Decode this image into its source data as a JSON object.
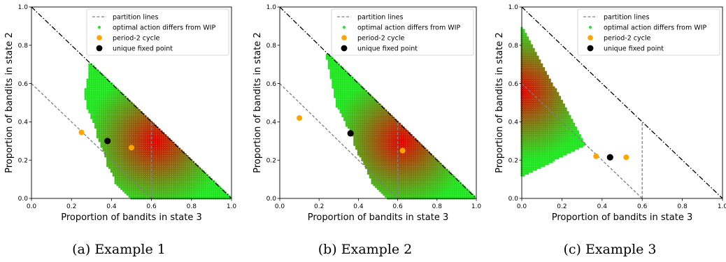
{
  "chart_data": [
    {
      "type": "scatter",
      "caption": "(a) Example 1",
      "xlabel": "Proportion of bandits in state 3",
      "ylabel": "Proportion of bandits in state 2",
      "xlim": [
        0,
        1
      ],
      "ylim": [
        0,
        1
      ],
      "xticks": [
        "0.0",
        "0.2",
        "0.4",
        "0.6",
        "0.8",
        "1.0"
      ],
      "yticks": [
        "0.0",
        "0.2",
        "0.4",
        "0.6",
        "0.8",
        "1.0"
      ],
      "legend_position": "upper right",
      "legend": [
        "partition lines",
        "optimal action differs from WIP",
        "period-2 cycle",
        "unique fixed point"
      ],
      "simplex_line": [
        [
          0,
          1
        ],
        [
          1,
          0
        ]
      ],
      "partition_lines": [
        [
          [
            0,
            0.6
          ],
          [
            0.6,
            0
          ]
        ],
        [
          [
            0.6,
            0
          ],
          [
            0.6,
            0.4
          ]
        ]
      ],
      "region_polygon": [
        [
          0.29,
          0.71
        ],
        [
          1.0,
          0.0
        ],
        [
          0.5,
          0.0
        ],
        [
          0.47,
          0.03
        ],
        [
          0.42,
          0.08
        ],
        [
          0.41,
          0.12
        ],
        [
          0.38,
          0.17
        ],
        [
          0.37,
          0.22
        ],
        [
          0.35,
          0.27
        ],
        [
          0.33,
          0.32
        ],
        [
          0.32,
          0.37
        ],
        [
          0.3,
          0.42
        ],
        [
          0.28,
          0.47
        ],
        [
          0.27,
          0.52
        ],
        [
          0.27,
          0.57
        ],
        [
          0.28,
          0.62
        ],
        [
          0.29,
          0.67
        ]
      ],
      "gradient_peak": [
        0.62,
        0.3
      ],
      "period2_cycle": [
        [
          0.25,
          0.345
        ],
        [
          0.5,
          0.265
        ]
      ],
      "fixed_point": [
        [
          0.38,
          0.3
        ]
      ]
    },
    {
      "type": "scatter",
      "caption": "(b) Example 2",
      "xlabel": "Proportion of bandits in state 3",
      "ylabel": "Proportion of bandits in state 2",
      "xlim": [
        0,
        1
      ],
      "ylim": [
        0,
        1
      ],
      "xticks": [
        "0.0",
        "0.2",
        "0.4",
        "0.6",
        "0.8",
        "1.0"
      ],
      "yticks": [
        "0.0",
        "0.2",
        "0.4",
        "0.6",
        "0.8",
        "1.0"
      ],
      "legend_position": "upper right",
      "legend": [
        "partition lines",
        "optimal action differs from WIP",
        "period-2 cycle",
        "unique fixed point"
      ],
      "simplex_line": [
        [
          0,
          1
        ],
        [
          1,
          0
        ]
      ],
      "partition_lines": [
        [
          [
            0,
            0.6
          ],
          [
            0.6,
            0
          ]
        ],
        [
          [
            0.6,
            0
          ],
          [
            0.6,
            0.4
          ]
        ]
      ],
      "region_polygon": [
        [
          0.24,
          0.76
        ],
        [
          1.0,
          0.0
        ],
        [
          0.55,
          0.0
        ],
        [
          0.52,
          0.03
        ],
        [
          0.47,
          0.08
        ],
        [
          0.45,
          0.13
        ],
        [
          0.43,
          0.18
        ],
        [
          0.4,
          0.23
        ],
        [
          0.38,
          0.28
        ],
        [
          0.37,
          0.33
        ],
        [
          0.34,
          0.38
        ],
        [
          0.32,
          0.43
        ],
        [
          0.29,
          0.48
        ],
        [
          0.28,
          0.53
        ],
        [
          0.27,
          0.58
        ],
        [
          0.26,
          0.63
        ],
        [
          0.25,
          0.68
        ],
        [
          0.24,
          0.73
        ]
      ],
      "gradient_peak": [
        0.62,
        0.3
      ],
      "period2_cycle": [
        [
          0.1,
          0.42
        ],
        [
          0.625,
          0.25
        ]
      ],
      "fixed_point": [
        [
          0.36,
          0.34
        ]
      ]
    },
    {
      "type": "scatter",
      "caption": "(c) Example 3",
      "xlabel": "Proportion of bandits in state 3",
      "ylabel": "Proportion of bandits in state 2",
      "xlim": [
        0,
        1
      ],
      "ylim": [
        0,
        1
      ],
      "xticks": [
        "0.0",
        "0.2",
        "0.4",
        "0.6",
        "0.8",
        "1.0"
      ],
      "yticks": [
        "0.0",
        "0.2",
        "0.4",
        "0.6",
        "0.8",
        "1.0"
      ],
      "legend_position": "upper right",
      "legend": [
        "partition lines",
        "optimal action differs from WIP",
        "period-2 cycle",
        "unique fixed point"
      ],
      "simplex_line": [
        [
          0,
          1
        ],
        [
          1,
          0
        ]
      ],
      "partition_lines": [
        [
          [
            0,
            0.6
          ],
          [
            0.6,
            0
          ]
        ],
        [
          [
            0.6,
            0
          ],
          [
            0.6,
            0.4
          ]
        ]
      ],
      "region_polygon": [
        [
          0.0,
          0.9
        ],
        [
          0.32,
          0.28
        ],
        [
          0.0,
          0.11
        ]
      ],
      "gradient_peak": [
        0.0,
        0.56
      ],
      "period2_cycle": [
        [
          0.37,
          0.22
        ],
        [
          0.52,
          0.215
        ]
      ],
      "fixed_point": [
        [
          0.44,
          0.215
        ]
      ]
    }
  ],
  "colors": {
    "partition": "#808080",
    "boundary": "#000000",
    "region_point": "#22e622",
    "region_hot": "#e60000",
    "period2": "#ffa500",
    "fixed_point": "#000000"
  }
}
